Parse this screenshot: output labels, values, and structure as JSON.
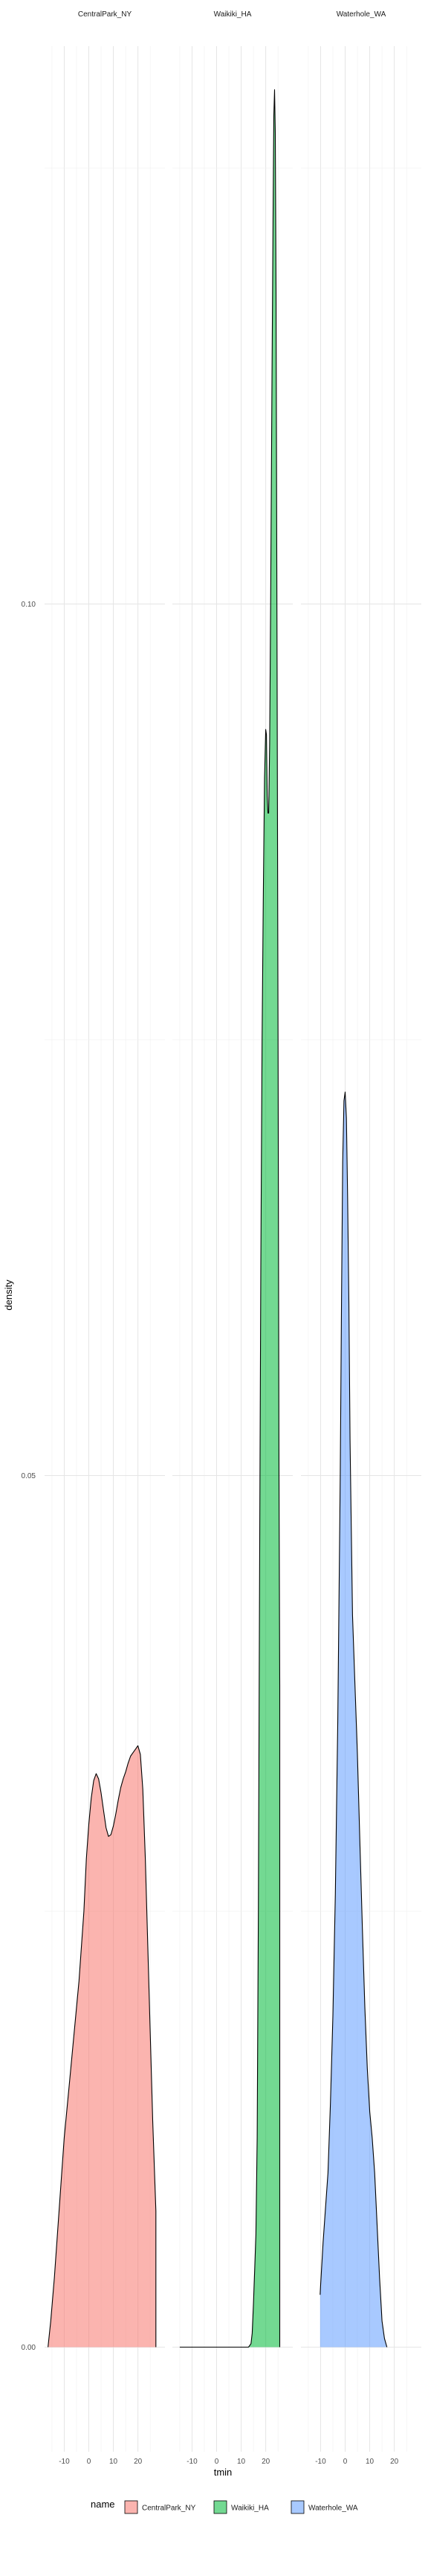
{
  "chart_data": {
    "type": "area",
    "facet_by": "name",
    "xlabel": "tmin",
    "ylabel": "density",
    "ylim": [
      -0.006,
      0.132
    ],
    "y_ticks": [
      0.0,
      0.05,
      0.1
    ],
    "y_tick_labels": [
      "0.00",
      "0.05",
      "0.10"
    ],
    "x_ticks": [
      -10,
      0,
      10,
      20
    ],
    "x_tick_labels": [
      "-10",
      "0",
      "10",
      "20"
    ],
    "grid": true,
    "legend": {
      "title": "name",
      "position": "bottom",
      "entries": [
        "CentralPark_NY",
        "Waikiki_HA",
        "Waterhole_WA"
      ]
    },
    "colors": {
      "CentralPark_NY": "#F8766D",
      "Waikiki_HA": "#00BA38",
      "Waterhole_WA": "#619CFF"
    },
    "panels": [
      {
        "name": "CentralPark_NY",
        "xlim": [
          -18,
          31
        ],
        "points": [
          [
            -16.6,
            0.0
          ],
          [
            -15.5,
            0.0015
          ],
          [
            -14,
            0.004
          ],
          [
            -12,
            0.008
          ],
          [
            -10,
            0.012
          ],
          [
            -8,
            0.015
          ],
          [
            -6,
            0.018
          ],
          [
            -4,
            0.021
          ],
          [
            -2,
            0.025
          ],
          [
            -1,
            0.028
          ],
          [
            0,
            0.03
          ],
          [
            1,
            0.0315
          ],
          [
            2,
            0.0325
          ],
          [
            3,
            0.0329
          ],
          [
            4,
            0.0326
          ],
          [
            5,
            0.0318
          ],
          [
            6,
            0.0308
          ],
          [
            7,
            0.0298
          ],
          [
            8,
            0.0293
          ],
          [
            9,
            0.0294
          ],
          [
            10,
            0.0299
          ],
          [
            11,
            0.0306
          ],
          [
            12,
            0.0314
          ],
          [
            13,
            0.0321
          ],
          [
            14,
            0.0326
          ],
          [
            15,
            0.033
          ],
          [
            16,
            0.0335
          ],
          [
            17,
            0.0339
          ],
          [
            18,
            0.0341
          ],
          [
            19,
            0.0343
          ],
          [
            20,
            0.0345
          ],
          [
            21,
            0.034
          ],
          [
            22,
            0.032
          ],
          [
            23,
            0.028
          ],
          [
            24,
            0.023
          ],
          [
            25,
            0.018
          ],
          [
            26,
            0.013
          ],
          [
            27,
            0.009
          ],
          [
            27.3,
            0.0078
          ],
          [
            27.3,
            0.0
          ]
        ]
      },
      {
        "name": "Waikiki_HA",
        "xlim": [
          -18,
          31
        ],
        "points": [
          [
            -15,
            0.0
          ],
          [
            13,
            0.0
          ],
          [
            14,
            0.0002
          ],
          [
            14.5,
            0.0008
          ],
          [
            15,
            0.0025
          ],
          [
            15.5,
            0.0045
          ],
          [
            16,
            0.0065
          ],
          [
            16.5,
            0.012
          ],
          [
            17,
            0.025
          ],
          [
            17.5,
            0.045
          ],
          [
            18,
            0.062
          ],
          [
            18.5,
            0.075
          ],
          [
            19,
            0.083
          ],
          [
            19.5,
            0.09
          ],
          [
            20,
            0.0928
          ],
          [
            20.3,
            0.0925
          ],
          [
            20.6,
            0.089
          ],
          [
            20.9,
            0.088
          ],
          [
            21.2,
            0.088
          ],
          [
            21.6,
            0.092
          ],
          [
            22,
            0.1
          ],
          [
            22.5,
            0.112
          ],
          [
            23,
            0.123
          ],
          [
            23.3,
            0.128
          ],
          [
            23.6,
            0.1295
          ],
          [
            23.9,
            0.127
          ],
          [
            24.2,
            0.118
          ],
          [
            24.6,
            0.098
          ],
          [
            25,
            0.075
          ],
          [
            25.4,
            0.05
          ],
          [
            25.7,
            0.038
          ],
          [
            25.7,
            0.0
          ]
        ]
      },
      {
        "name": "Waterhole_WA",
        "xlim": [
          -18,
          31
        ],
        "points": [
          [
            -10.2,
            0.003
          ],
          [
            -10,
            0.0035
          ],
          [
            -9,
            0.006
          ],
          [
            -8,
            0.008
          ],
          [
            -7,
            0.01
          ],
          [
            -6,
            0.014
          ],
          [
            -5,
            0.019
          ],
          [
            -4,
            0.026
          ],
          [
            -3,
            0.036
          ],
          [
            -2,
            0.05
          ],
          [
            -1.5,
            0.06
          ],
          [
            -1,
            0.068
          ],
          [
            -0.5,
            0.0715
          ],
          [
            0,
            0.072
          ],
          [
            0.5,
            0.0705
          ],
          [
            1,
            0.066
          ],
          [
            1.5,
            0.06
          ],
          [
            2,
            0.052
          ],
          [
            3,
            0.042
          ],
          [
            4,
            0.038
          ],
          [
            5,
            0.034
          ],
          [
            6,
            0.029
          ],
          [
            7,
            0.024
          ],
          [
            8,
            0.0195
          ],
          [
            9,
            0.016
          ],
          [
            10,
            0.0135
          ],
          [
            11,
            0.012
          ],
          [
            12,
            0.01
          ],
          [
            13,
            0.007
          ],
          [
            14,
            0.004
          ],
          [
            15,
            0.0015
          ],
          [
            16,
            0.0005
          ],
          [
            17,
            0.0
          ]
        ]
      }
    ]
  }
}
